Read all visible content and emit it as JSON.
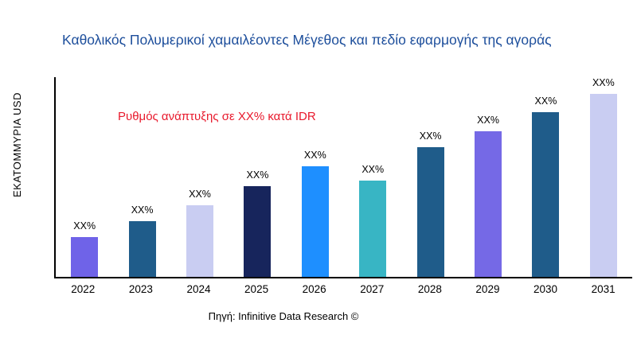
{
  "title": "Καθολικός Πολυμερικοί χαμαιλέοντες Μέγεθος και πεδίο εφαρμογής της αγοράς",
  "y_axis_label": "ΕΚΑΤΟΜΜΥΡΙΑ USD",
  "annotation": "Ρυθμός ανάπτυξης σε XX% κατά IDR",
  "source": "Πηγή: Infinitive Data Research ©",
  "colors": {
    "title": "#1e4f9c",
    "annotation": "#e8192c",
    "axis": "#000000"
  },
  "chart_data": {
    "type": "bar",
    "title": "Καθολικός Πολυμερικοί χαμαιλέοντες Μέγεθος και πεδίο εφαρμογής της αγοράς",
    "categories": [
      "2022",
      "2023",
      "2024",
      "2025",
      "2026",
      "2027",
      "2028",
      "2029",
      "2030",
      "2031"
    ],
    "values": [
      50,
      70,
      90,
      114,
      138,
      121,
      162,
      182,
      206,
      230
    ],
    "bar_labels": [
      "XX%",
      "XX%",
      "XX%",
      "XX%",
      "XX%",
      "XX%",
      "XX%",
      "XX%",
      "XX%",
      "XX%"
    ],
    "bar_colors": [
      "#6f63e8",
      "#1f5c8a",
      "#c9cdf2",
      "#17255c",
      "#1e8fff",
      "#38b5c4",
      "#1f5c8a",
      "#7569e6",
      "#1f5c8a",
      "#c9cdf2"
    ],
    "xlabel": "",
    "ylabel": "ΕΚΑΤΟΜΜΥΡΙΑ USD",
    "ylim": [
      0,
      250
    ],
    "grid": false,
    "legend": false,
    "annotation": "Ρυθμός ανάπτυξης σε XX% κατά IDR"
  }
}
